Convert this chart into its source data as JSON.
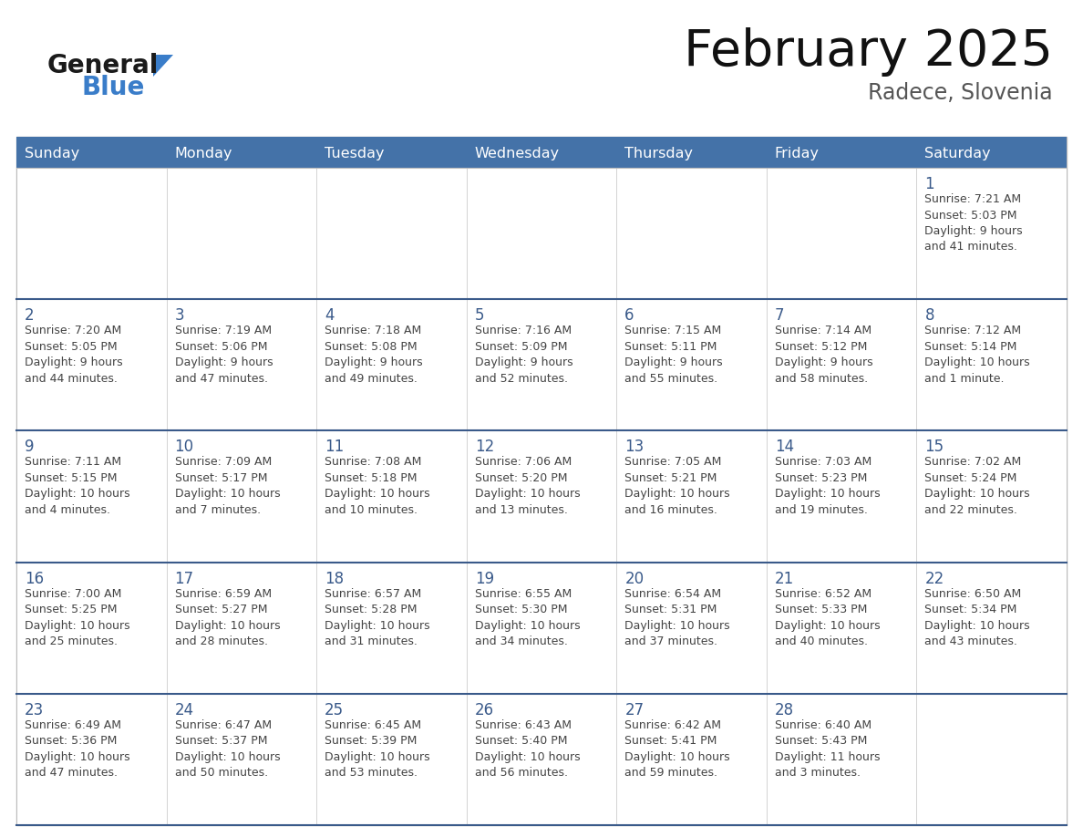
{
  "title": "February 2025",
  "subtitle": "Radece, Slovenia",
  "header_color": "#4472A8",
  "header_text_color": "#FFFFFF",
  "cell_bg_color": "#FFFFFF",
  "cell_bg_alt": "#F0F0F0",
  "row_separator_color": "#3A5A8A",
  "outer_border_color": "#AAAAAA",
  "day_number_color": "#3A5A8A",
  "info_text_color": "#444444",
  "days_of_week": [
    "Sunday",
    "Monday",
    "Tuesday",
    "Wednesday",
    "Thursday",
    "Friday",
    "Saturday"
  ],
  "calendar_data": [
    [
      null,
      null,
      null,
      null,
      null,
      null,
      {
        "day": 1,
        "sunrise": "7:21 AM",
        "sunset": "5:03 PM",
        "daylight": "9 hours\nand 41 minutes."
      }
    ],
    [
      {
        "day": 2,
        "sunrise": "7:20 AM",
        "sunset": "5:05 PM",
        "daylight": "9 hours\nand 44 minutes."
      },
      {
        "day": 3,
        "sunrise": "7:19 AM",
        "sunset": "5:06 PM",
        "daylight": "9 hours\nand 47 minutes."
      },
      {
        "day": 4,
        "sunrise": "7:18 AM",
        "sunset": "5:08 PM",
        "daylight": "9 hours\nand 49 minutes."
      },
      {
        "day": 5,
        "sunrise": "7:16 AM",
        "sunset": "5:09 PM",
        "daylight": "9 hours\nand 52 minutes."
      },
      {
        "day": 6,
        "sunrise": "7:15 AM",
        "sunset": "5:11 PM",
        "daylight": "9 hours\nand 55 minutes."
      },
      {
        "day": 7,
        "sunrise": "7:14 AM",
        "sunset": "5:12 PM",
        "daylight": "9 hours\nand 58 minutes."
      },
      {
        "day": 8,
        "sunrise": "7:12 AM",
        "sunset": "5:14 PM",
        "daylight": "10 hours\nand 1 minute."
      }
    ],
    [
      {
        "day": 9,
        "sunrise": "7:11 AM",
        "sunset": "5:15 PM",
        "daylight": "10 hours\nand 4 minutes."
      },
      {
        "day": 10,
        "sunrise": "7:09 AM",
        "sunset": "5:17 PM",
        "daylight": "10 hours\nand 7 minutes."
      },
      {
        "day": 11,
        "sunrise": "7:08 AM",
        "sunset": "5:18 PM",
        "daylight": "10 hours\nand 10 minutes."
      },
      {
        "day": 12,
        "sunrise": "7:06 AM",
        "sunset": "5:20 PM",
        "daylight": "10 hours\nand 13 minutes."
      },
      {
        "day": 13,
        "sunrise": "7:05 AM",
        "sunset": "5:21 PM",
        "daylight": "10 hours\nand 16 minutes."
      },
      {
        "day": 14,
        "sunrise": "7:03 AM",
        "sunset": "5:23 PM",
        "daylight": "10 hours\nand 19 minutes."
      },
      {
        "day": 15,
        "sunrise": "7:02 AM",
        "sunset": "5:24 PM",
        "daylight": "10 hours\nand 22 minutes."
      }
    ],
    [
      {
        "day": 16,
        "sunrise": "7:00 AM",
        "sunset": "5:25 PM",
        "daylight": "10 hours\nand 25 minutes."
      },
      {
        "day": 17,
        "sunrise": "6:59 AM",
        "sunset": "5:27 PM",
        "daylight": "10 hours\nand 28 minutes."
      },
      {
        "day": 18,
        "sunrise": "6:57 AM",
        "sunset": "5:28 PM",
        "daylight": "10 hours\nand 31 minutes."
      },
      {
        "day": 19,
        "sunrise": "6:55 AM",
        "sunset": "5:30 PM",
        "daylight": "10 hours\nand 34 minutes."
      },
      {
        "day": 20,
        "sunrise": "6:54 AM",
        "sunset": "5:31 PM",
        "daylight": "10 hours\nand 37 minutes."
      },
      {
        "day": 21,
        "sunrise": "6:52 AM",
        "sunset": "5:33 PM",
        "daylight": "10 hours\nand 40 minutes."
      },
      {
        "day": 22,
        "sunrise": "6:50 AM",
        "sunset": "5:34 PM",
        "daylight": "10 hours\nand 43 minutes."
      }
    ],
    [
      {
        "day": 23,
        "sunrise": "6:49 AM",
        "sunset": "5:36 PM",
        "daylight": "10 hours\nand 47 minutes."
      },
      {
        "day": 24,
        "sunrise": "6:47 AM",
        "sunset": "5:37 PM",
        "daylight": "10 hours\nand 50 minutes."
      },
      {
        "day": 25,
        "sunrise": "6:45 AM",
        "sunset": "5:39 PM",
        "daylight": "10 hours\nand 53 minutes."
      },
      {
        "day": 26,
        "sunrise": "6:43 AM",
        "sunset": "5:40 PM",
        "daylight": "10 hours\nand 56 minutes."
      },
      {
        "day": 27,
        "sunrise": "6:42 AM",
        "sunset": "5:41 PM",
        "daylight": "10 hours\nand 59 minutes."
      },
      {
        "day": 28,
        "sunrise": "6:40 AM",
        "sunset": "5:43 PM",
        "daylight": "11 hours\nand 3 minutes."
      },
      null
    ]
  ],
  "logo_general_color": "#1A1A1A",
  "logo_blue_color": "#3A7DC9",
  "logo_triangle_color": "#3A7DC9"
}
